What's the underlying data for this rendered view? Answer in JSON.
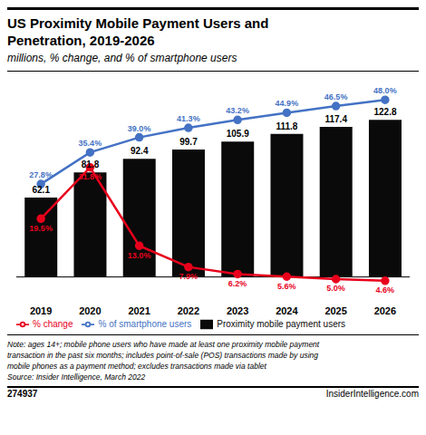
{
  "chart_data": {
    "type": "bar",
    "title": "US Proximity Mobile Payment Users and\nPenetration, 2019-2026",
    "subtitle": "millions, % change, and % of smartphone users",
    "annotations": [
      "Note: ages 14+; mobile phone users who have made at least one proximity mobile payment\ntransaction in the past six months; includes point-of-sale (POS) transactions made by using\nmobile phones as a payment method; excludes transactions made via tablet\nSource: Insider Intelligence, March 2022",
      "274937",
      "InsiderIntelligence.com"
    ],
    "categories": [
      "2019",
      "2020",
      "2021",
      "2022",
      "2023",
      "2024",
      "2025",
      "2026"
    ],
    "series": [
      {
        "name": "Proximity mobile payment users",
        "type": "bar",
        "color": "#0a0a0a",
        "values": [
          62.1,
          81.8,
          92.4,
          99.7,
          105.9,
          111.8,
          117.4,
          122.8
        ]
      },
      {
        "name": "% change",
        "type": "line",
        "color": "#e8001c",
        "marker": "o",
        "axis": "y2",
        "values": [
          19.5,
          31.8,
          13.0,
          7.9,
          6.2,
          5.6,
          5.0,
          4.6
        ],
        "value_labels": [
          "19.5%",
          "31.8%",
          "13.0%",
          "7.9%",
          "6.2%",
          "5.6%",
          "5.0%",
          "4.6%"
        ]
      },
      {
        "name": "% of smartphone users",
        "type": "line",
        "color": "#4472c4",
        "marker": "o",
        "axis": "y2",
        "values": [
          27.8,
          35.4,
          39.0,
          41.3,
          43.2,
          44.9,
          46.5,
          48.0
        ],
        "value_labels": [
          "27.8%",
          "35.4%",
          "39.0%",
          "41.3%",
          "43.2%",
          "44.9%",
          "46.5%",
          "48.0%"
        ]
      }
    ],
    "ylim": [
      -18,
      145
    ],
    "y2lim": [
      0,
      50
    ],
    "data_labels": true,
    "tick_labels": "x",
    "legend": "lower left"
  }
}
